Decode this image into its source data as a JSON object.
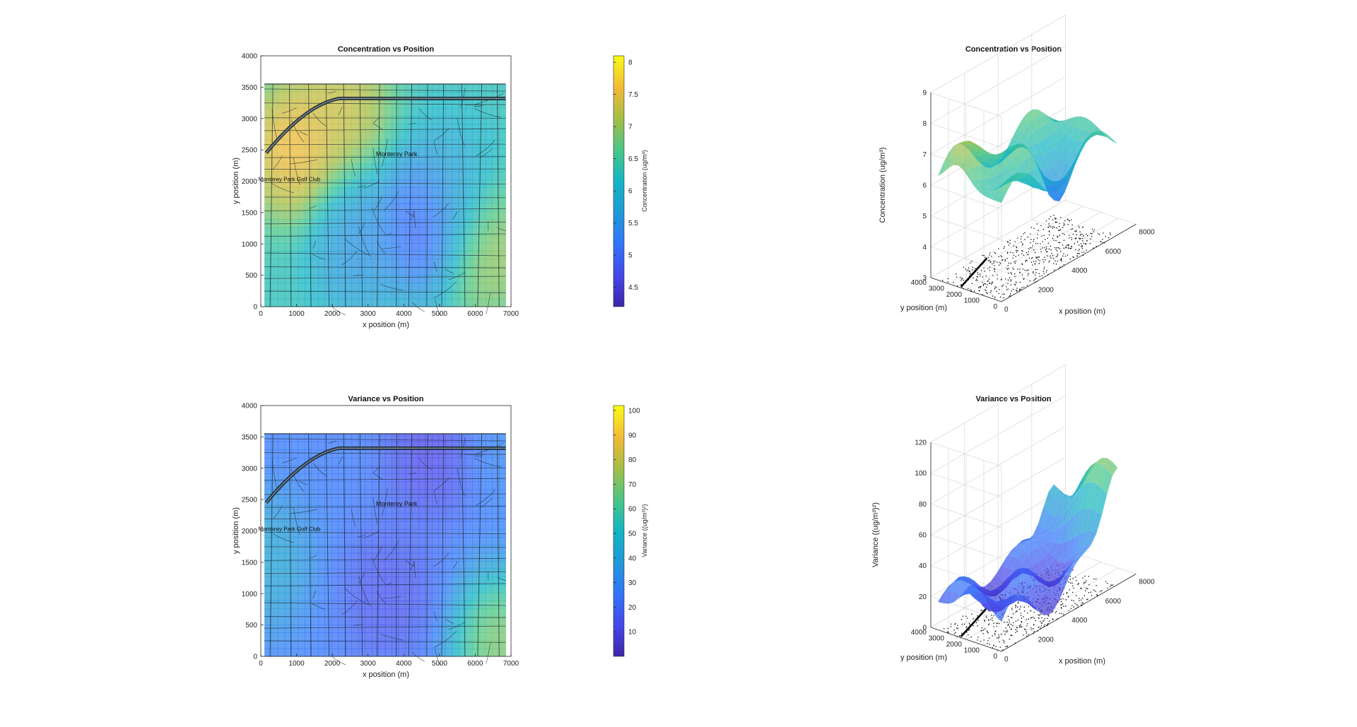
{
  "figure": {
    "chart_data": [
      {
        "type": "heatmap",
        "title": "Concentration vs Position",
        "xlabel": "x position (m)",
        "ylabel": "y position (m)",
        "xlim": [
          0,
          7000
        ],
        "ylim": [
          0,
          4000
        ],
        "xticks": [
          "0",
          "1000",
          "2000",
          "3000",
          "4000",
          "5000",
          "6000",
          "7000"
        ],
        "yticks": [
          "0",
          "500",
          "1000",
          "1500",
          "2000",
          "2500",
          "3000",
          "3500",
          "4000"
        ],
        "colorbar": {
          "label": "Concentration (ug/m³)",
          "range": [
            4.2,
            8.1
          ],
          "ticks": [
            "4.5",
            "5",
            "5.5",
            "6",
            "6.5",
            "7",
            "7.5",
            "8"
          ],
          "tick_values": [
            4.5,
            5,
            5.5,
            6,
            6.5,
            7,
            7.5,
            8
          ],
          "colormap": "parula"
        },
        "overlay": "street map",
        "map_labels": [
          "Monterey Park",
          "Monterey Park Golf Club"
        ],
        "field_peaks": [
          {
            "x": 900,
            "y": 2500,
            "value": 8.0
          },
          {
            "x": 2300,
            "y": 3200,
            "value": 7.6
          },
          {
            "x": 4600,
            "y": 1300,
            "value": 4.4
          },
          {
            "x": 2700,
            "y": 1000,
            "value": 5.3
          },
          {
            "x": 6300,
            "y": 900,
            "value": 7.3
          },
          {
            "x": 5300,
            "y": 1900,
            "value": 5.7
          }
        ]
      },
      {
        "type": "surface",
        "title": "Concentration vs Position",
        "xlabel": "x position (m)",
        "ylabel": "y position (m)",
        "zlabel": "Concentration (ug/m³)",
        "xticks": [
          "0",
          "2000",
          "4000",
          "6000",
          "8000"
        ],
        "yticks": [
          "0",
          "1000",
          "2000",
          "3000",
          "4000"
        ],
        "zticks": [
          "3",
          "4",
          "5",
          "6",
          "7",
          "8",
          "9"
        ],
        "zlim": [
          3,
          9
        ]
      },
      {
        "type": "heatmap",
        "title": "Variance vs Position",
        "xlabel": "x position (m)",
        "ylabel": "y position (m)",
        "xlim": [
          0,
          7000
        ],
        "ylim": [
          0,
          4000
        ],
        "xticks": [
          "0",
          "1000",
          "2000",
          "3000",
          "4000",
          "5000",
          "6000",
          "7000"
        ],
        "yticks": [
          "0",
          "500",
          "1000",
          "1500",
          "2000",
          "2500",
          "3000",
          "3500",
          "4000"
        ],
        "colorbar": {
          "label": "Variance ((ug/m³)²)",
          "range": [
            0,
            102
          ],
          "ticks": [
            "10",
            "20",
            "30",
            "40",
            "50",
            "60",
            "70",
            "80",
            "90",
            "100"
          ],
          "tick_values": [
            10,
            20,
            30,
            40,
            50,
            60,
            70,
            80,
            90,
            100
          ],
          "colormap": "parula"
        },
        "overlay": "street map",
        "map_labels": [
          "Monterey Park",
          "Monterey Park Golf Club"
        ],
        "field_peaks": [
          {
            "x": 6700,
            "y": 200,
            "value": 85
          },
          {
            "x": 100,
            "y": 1500,
            "value": 45
          },
          {
            "x": 6800,
            "y": 3400,
            "value": 30
          },
          {
            "x": 3600,
            "y": 1000,
            "value": 12
          },
          {
            "x": 4800,
            "y": 3300,
            "value": 8
          }
        ]
      },
      {
        "type": "surface",
        "title": "Variance vs Position",
        "xlabel": "x position (m)",
        "ylabel": "y position (m)",
        "zlabel": "Variance ((ug/m³)²)",
        "xticks": [
          "0",
          "2000",
          "4000",
          "6000",
          "8000"
        ],
        "yticks": [
          "0",
          "1000",
          "2000",
          "3000",
          "4000"
        ],
        "zticks": [
          "0",
          "20",
          "40",
          "60",
          "80",
          "100",
          "120"
        ],
        "zlim": [
          0,
          120
        ]
      }
    ]
  }
}
